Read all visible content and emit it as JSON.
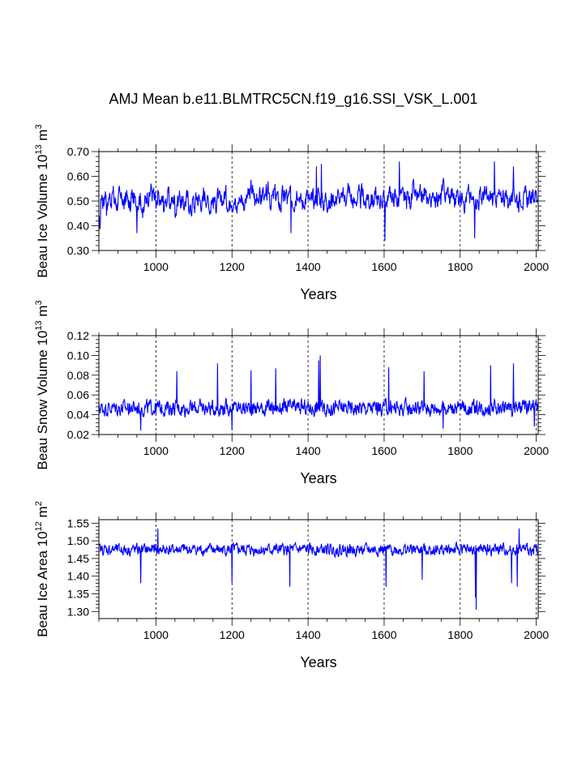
{
  "title": "AMJ Mean b.e11.BLMTRC5CN.f19_g16.SSI_VSK_L.001",
  "series_color": "#0000ff",
  "chart_data": [
    {
      "type": "line",
      "title": "",
      "xlabel": "Years",
      "ylabel": {
        "prefix": "Beau Ice Volume 10",
        "exp": "13",
        "unit": " m",
        "unit_exp": "3"
      },
      "xlim": [
        850,
        2005
      ],
      "ylim": [
        0.3,
        0.7
      ],
      "xticks": [
        1000,
        1200,
        1400,
        1600,
        1800,
        2000
      ],
      "yticks": [
        0.3,
        0.4,
        0.5,
        0.6,
        0.7
      ],
      "ytick_labels": [
        "0.30",
        "0.40",
        "0.50",
        "0.60",
        "0.70"
      ],
      "grid": "vertical dashed at x ticks",
      "series": [
        {
          "x_start": 850,
          "x_step": 5,
          "values": [
            0.4,
            0.52,
            0.5,
            0.54,
            0.48,
            0.52,
            0.51,
            0.53,
            0.5,
            0.49,
            0.52,
            0.5,
            0.51,
            0.48,
            0.53,
            0.5,
            0.47,
            0.52,
            0.51,
            0.49,
            0.5,
            0.52,
            0.49,
            0.45,
            0.5,
            0.53,
            0.52,
            0.55,
            0.53,
            0.5,
            0.47,
            0.51,
            0.49,
            0.5,
            0.48,
            0.51,
            0.52,
            0.49,
            0.5,
            0.51,
            0.47,
            0.5,
            0.52,
            0.5,
            0.48,
            0.5,
            0.51,
            0.49,
            0.46,
            0.5,
            0.48,
            0.52,
            0.51,
            0.5,
            0.49,
            0.53,
            0.52,
            0.5,
            0.48,
            0.51,
            0.5,
            0.49,
            0.52,
            0.5,
            0.48,
            0.51,
            0.53,
            0.5,
            0.48,
            0.52,
            0.5,
            0.49,
            0.47,
            0.5,
            0.52,
            0.51,
            0.49,
            0.5,
            0.52,
            0.53,
            0.55,
            0.52,
            0.5,
            0.53,
            0.52,
            0.51,
            0.54,
            0.5,
            0.52,
            0.53,
            0.5,
            0.51,
            0.53,
            0.52,
            0.5,
            0.48,
            0.52,
            0.51,
            0.53,
            0.5,
            0.52,
            0.51,
            0.5,
            0.52,
            0.55,
            0.53,
            0.5,
            0.49,
            0.51,
            0.52,
            0.5,
            0.49,
            0.51,
            0.5,
            0.52,
            0.53,
            0.51,
            0.5,
            0.49,
            0.52,
            0.5,
            0.48,
            0.51,
            0.52,
            0.5,
            0.53,
            0.51,
            0.5,
            0.52,
            0.51,
            0.53,
            0.55,
            0.52,
            0.5,
            0.49,
            0.51,
            0.52,
            0.5,
            0.53,
            0.51,
            0.49,
            0.52,
            0.5,
            0.51,
            0.5,
            0.52,
            0.51,
            0.49,
            0.52,
            0.5,
            0.51,
            0.5,
            0.52,
            0.54,
            0.5,
            0.52,
            0.51,
            0.5,
            0.53,
            0.52,
            0.51,
            0.49,
            0.52,
            0.5,
            0.51,
            0.54,
            0.52,
            0.51,
            0.5,
            0.52,
            0.51,
            0.53,
            0.5,
            0.52,
            0.51,
            0.5,
            0.53,
            0.52,
            0.51,
            0.5,
            0.53,
            0.55,
            0.52,
            0.54,
            0.51,
            0.53,
            0.52,
            0.5,
            0.53,
            0.52,
            0.51,
            0.54,
            0.5,
            0.52,
            0.53,
            0.51,
            0.5,
            0.52,
            0.51,
            0.5,
            0.52,
            0.51,
            0.53,
            0.52,
            0.5,
            0.51,
            0.52,
            0.5,
            0.53,
            0.51,
            0.52,
            0.5,
            0.53,
            0.52,
            0.51,
            0.5,
            0.52,
            0.51,
            0.53,
            0.52,
            0.5,
            0.51,
            0.52,
            0.5,
            0.52,
            0.51,
            0.5,
            0.52,
            0.51,
            0.53,
            0.52,
            0.5,
            0.52
          ]
        },
        {
          "role": "noise",
          "amplitude": 0.06,
          "spikes": [
            [
              1422,
              0.64
            ],
            [
              1435,
              0.65
            ],
            [
              1602,
              0.34
            ],
            [
              1838,
              0.35
            ],
            [
              1640,
              0.66
            ],
            [
              1890,
              0.66
            ],
            [
              1940,
              0.64
            ],
            [
              950,
              0.37
            ],
            [
              1355,
              0.37
            ]
          ]
        }
      ]
    },
    {
      "type": "line",
      "title": "",
      "xlabel": "Years",
      "ylabel": {
        "prefix": "Beau Snow Volume 10",
        "exp": "13",
        "unit": " m",
        "unit_exp": "3"
      },
      "xlim": [
        850,
        2005
      ],
      "ylim": [
        0.02,
        0.12
      ],
      "xticks": [
        1000,
        1200,
        1400,
        1600,
        1800,
        2000
      ],
      "yticks": [
        0.02,
        0.04,
        0.06,
        0.08,
        0.1,
        0.12
      ],
      "ytick_labels": [
        "0.02",
        "0.04",
        "0.06",
        "0.08",
        "0.10",
        "0.12"
      ],
      "grid": "vertical dashed at x ticks",
      "series": [
        {
          "baseline": 0.047,
          "amplitude": 0.012,
          "spikes": [
            [
              1162,
              0.092
            ],
            [
              1432,
              0.1
            ],
            [
              1428,
              0.095
            ],
            [
              1250,
              0.085
            ],
            [
              1315,
              0.087
            ],
            [
              1612,
              0.088
            ],
            [
              1940,
              0.092
            ],
            [
              1055,
              0.084
            ],
            [
              1705,
              0.084
            ],
            [
              1880,
              0.09
            ],
            [
              1200,
              0.025
            ],
            [
              960,
              0.024
            ],
            [
              1755,
              0.026
            ],
            [
              1995,
              0.028
            ]
          ]
        }
      ]
    },
    {
      "type": "line",
      "title": "",
      "xlabel": "Years",
      "ylabel": {
        "prefix": "Beau Ice Area 10",
        "exp": "12",
        "unit": " m",
        "unit_exp": "2"
      },
      "xlim": [
        850,
        2005
      ],
      "ylim": [
        1.28,
        1.56
      ],
      "xticks": [
        1000,
        1200,
        1400,
        1600,
        1800,
        2000
      ],
      "yticks": [
        1.3,
        1.35,
        1.4,
        1.45,
        1.5,
        1.55
      ],
      "ytick_labels": [
        "1.30",
        "1.35",
        "1.40",
        "1.45",
        "1.50",
        "1.55"
      ],
      "grid": "vertical dashed at x ticks",
      "series": [
        {
          "baseline": 1.475,
          "amplitude": 0.025,
          "spikes": [
            [
              1842,
              1.305
            ],
            [
              1840,
              1.34
            ],
            [
              1352,
              1.37
            ],
            [
              1605,
              1.37
            ],
            [
              1950,
              1.37
            ],
            [
              1935,
              1.38
            ],
            [
              1200,
              1.38
            ],
            [
              960,
              1.38
            ],
            [
              1700,
              1.39
            ],
            [
              1005,
              1.535
            ],
            [
              1955,
              1.535
            ]
          ]
        }
      ]
    }
  ]
}
